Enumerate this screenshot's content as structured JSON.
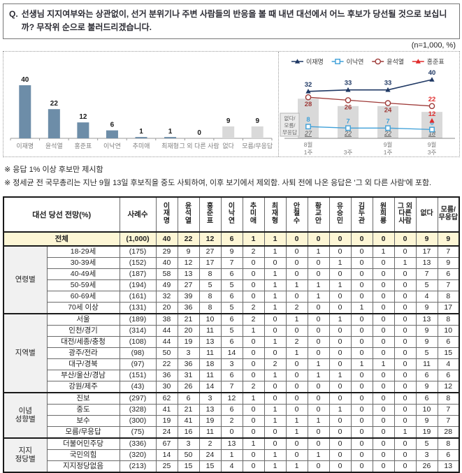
{
  "question": {
    "prefix": "Q.",
    "text": "선생님 지지여부와는 상관없이, 선거 분위기나 주변 사람들의 반응을 볼 때 내년 대선에서 어느 후보가 당선될 것으로 보십니까? 무작위 순으로 불러드리겠습니다."
  },
  "sample_label": "(n=1,000, %)",
  "notes": [
    "※ 응답 1% 이상 후보만 제시함",
    "※ 정세균 전 국무총리는 지난 9월 13일 후보직을 중도 사퇴하여, 이후 보기에서 제외함. 사퇴 전에 나온 응답은 '그 외 다른 사람'에 포함."
  ],
  "colors": {
    "bar_blue": "#6D8DA8",
    "bar_gray": "#D9D9D9",
    "axis": "#999999",
    "category_label": "#7F7F7F",
    "lee_jae_myung": "#1F3864",
    "lee_nak_yeon": "#3FA0D8",
    "yoon_seok_youl": "#9E3A38",
    "hong_jun_pyo": "#E02B2B",
    "total_row_bg": "#FDF6D5",
    "group_col_bg": "#F1F1F1"
  },
  "chart_data": [
    {
      "type": "bar",
      "title": "대선 당선 전망 (전체)",
      "categories": [
        "이재명",
        "윤석열",
        "홍준표",
        "이낙연",
        "추미애",
        "최재형",
        "그 외 다른 사람",
        "없다",
        "모름/무응답"
      ],
      "values": [
        40,
        22,
        12,
        6,
        1,
        1,
        0,
        9,
        9
      ],
      "bar_colors": [
        "#6D8DA8",
        "#6D8DA8",
        "#6D8DA8",
        "#6D8DA8",
        "#6D8DA8",
        "#6D8DA8",
        "#6D8DA8",
        "#D9D9D9",
        "#D9D9D9"
      ],
      "xlabel": "",
      "ylabel": "",
      "ylim": [
        0,
        45
      ],
      "grid": false
    },
    {
      "type": "line",
      "title": "대선 당선 전망 추이",
      "x_labels": [
        [
          "8월",
          "1주"
        ],
        [
          "",
          "3주"
        ],
        [
          "9월",
          "1주"
        ],
        [
          "9월",
          "3주"
        ]
      ],
      "series": [
        {
          "name": "이재명",
          "color": "#1F3864",
          "marker": "triangle-filled",
          "values": [
            32,
            33,
            33,
            40
          ],
          "label_pos": [
            "a",
            "a",
            "a",
            "a"
          ],
          "label_colors": [
            "#1F3864",
            "#1F3864",
            "#1F3864",
            "#1F3864"
          ]
        },
        {
          "name": "이낙연",
          "color": "#3FA0D8",
          "marker": "square-open",
          "values": [
            8,
            7,
            7,
            6
          ],
          "label_pos": [
            "a",
            "a",
            "a",
            "a"
          ],
          "label_colors": [
            "#3FA0D8",
            "#3FA0D8",
            "#3FA0D8",
            "#3FA0D8"
          ]
        },
        {
          "name": "윤석열",
          "color": "#9E3A38",
          "marker": "circle-open",
          "values": [
            28,
            26,
            24,
            22
          ],
          "label_pos": [
            "b",
            "b",
            "b",
            "a"
          ],
          "label_colors": [
            "#9E3A38",
            "#9E3A38",
            "#9E3A38",
            "#E02B2B"
          ]
        },
        {
          "name": "홍준표",
          "color": "#E02B2B",
          "marker": "triangle-filled",
          "values": [
            null,
            null,
            null,
            12
          ],
          "label_pos": [
            "a",
            "a",
            "a",
            "a"
          ],
          "label_colors": [
            "#E02B2B",
            "#E02B2B",
            "#E02B2B",
            "#E02B2B"
          ]
        }
      ],
      "bars": {
        "label_lines": [
          "없다/",
          "모름/",
          "무응답"
        ],
        "values": [
          27,
          22,
          22,
          18
        ],
        "color": "#D9D9D9"
      },
      "legend_position": "top",
      "ylim": [
        0,
        45
      ],
      "grid": false
    }
  ],
  "table": {
    "corner_header": "대선 당선 전망(%)",
    "n_header": "사례수",
    "columns": [
      {
        "label": "이재명",
        "display": [
          "이",
          "재",
          "명"
        ]
      },
      {
        "label": "윤석열",
        "display": [
          "윤",
          "석",
          "열"
        ]
      },
      {
        "label": "홍준표",
        "display": [
          "홍",
          "준",
          "표"
        ]
      },
      {
        "label": "이낙연",
        "display": [
          "이",
          "낙",
          "연"
        ]
      },
      {
        "label": "추미애",
        "display": [
          "추",
          "미",
          "애"
        ]
      },
      {
        "label": "최재형",
        "display": [
          "최",
          "재",
          "형"
        ]
      },
      {
        "label": "안철수",
        "display": [
          "안",
          "철",
          "수"
        ]
      },
      {
        "label": "황교안",
        "display": [
          "황",
          "교",
          "안"
        ]
      },
      {
        "label": "유승민",
        "display": [
          "유",
          "승",
          "민"
        ]
      },
      {
        "label": "김두관",
        "display": [
          "김",
          "두",
          "관"
        ]
      },
      {
        "label": "원희룡",
        "display": [
          "원",
          "희",
          "룡"
        ]
      },
      {
        "label": "그 외 다른 사람",
        "display": [
          "그 외",
          "다른",
          "사람"
        ]
      },
      {
        "label": "없다",
        "display": [
          "없다"
        ]
      },
      {
        "label": "모름/무응답",
        "display": [
          "모름/",
          "무응답"
        ]
      }
    ],
    "total_row": {
      "label": "전체",
      "n": "(1,000)",
      "values": [
        40,
        22,
        12,
        6,
        1,
        1,
        0,
        0,
        0,
        0,
        0,
        0,
        9,
        9
      ]
    },
    "groups": [
      {
        "label_lines": [
          "연령별"
        ],
        "rows": [
          {
            "label": "18-29세",
            "n": "(175)",
            "values": [
              29,
              9,
              27,
              9,
              2,
              1,
              0,
              1,
              0,
              0,
              1,
              0,
              17,
              7
            ]
          },
          {
            "label": "30-39세",
            "n": "(152)",
            "values": [
              40,
              12,
              17,
              7,
              0,
              0,
              0,
              0,
              1,
              0,
              0,
              1,
              13,
              9
            ]
          },
          {
            "label": "40-49세",
            "n": "(187)",
            "values": [
              58,
              13,
              8,
              6,
              0,
              1,
              0,
              0,
              0,
              0,
              0,
              0,
              7,
              6
            ]
          },
          {
            "label": "50-59세",
            "n": "(194)",
            "values": [
              49,
              27,
              5,
              5,
              0,
              1,
              1,
              1,
              1,
              0,
              0,
              0,
              5,
              7
            ]
          },
          {
            "label": "60-69세",
            "n": "(161)",
            "values": [
              32,
              39,
              8,
              6,
              0,
              1,
              0,
              1,
              0,
              0,
              0,
              0,
              4,
              8
            ]
          },
          {
            "label": "70세 이상",
            "n": "(131)",
            "values": [
              20,
              36,
              8,
              5,
              2,
              1,
              2,
              0,
              0,
              1,
              0,
              0,
              9,
              17
            ]
          }
        ]
      },
      {
        "label_lines": [
          "지역별"
        ],
        "rows": [
          {
            "label": "서울",
            "n": "(189)",
            "values": [
              38,
              21,
              10,
              6,
              2,
              0,
              1,
              0,
              1,
              0,
              0,
              0,
              13,
              8
            ]
          },
          {
            "label": "인천/경기",
            "n": "(314)",
            "values": [
              44,
              20,
              11,
              5,
              1,
              0,
              0,
              0,
              0,
              0,
              0,
              0,
              9,
              10
            ]
          },
          {
            "label": "대전/세종/충청",
            "n": "(108)",
            "values": [
              44,
              19,
              13,
              6,
              0,
              1,
              2,
              0,
              0,
              0,
              0,
              0,
              9,
              6
            ]
          },
          {
            "label": "광주/전라",
            "n": "(98)",
            "values": [
              50,
              3,
              11,
              14,
              0,
              0,
              1,
              0,
              0,
              0,
              0,
              0,
              5,
              15
            ]
          },
          {
            "label": "대구/경북",
            "n": "(97)",
            "values": [
              22,
              36,
              18,
              3,
              0,
              2,
              0,
              1,
              0,
              1,
              1,
              0,
              11,
              4
            ]
          },
          {
            "label": "부산/울산/경남",
            "n": "(151)",
            "values": [
              36,
              31,
              11,
              6,
              0,
              1,
              0,
              1,
              1,
              0,
              0,
              0,
              6,
              6
            ]
          },
          {
            "label": "강원/제주",
            "n": "(43)",
            "values": [
              30,
              26,
              14,
              7,
              2,
              0,
              0,
              0,
              0,
              0,
              0,
              0,
              9,
              12
            ]
          }
        ]
      },
      {
        "label_lines": [
          "이념",
          "성향별"
        ],
        "rows": [
          {
            "label": "진보",
            "n": "(297)",
            "values": [
              62,
              6,
              3,
              12,
              1,
              0,
              0,
              0,
              0,
              0,
              0,
              0,
              6,
              8
            ]
          },
          {
            "label": "중도",
            "n": "(328)",
            "values": [
              41,
              21,
              13,
              6,
              0,
              1,
              0,
              0,
              1,
              0,
              0,
              0,
              10,
              7
            ]
          },
          {
            "label": "보수",
            "n": "(300)",
            "values": [
              19,
              41,
              19,
              2,
              0,
              1,
              1,
              1,
              0,
              0,
              0,
              0,
              9,
              7
            ]
          },
          {
            "label": "모름/무응답",
            "n": "(75)",
            "values": [
              24,
              16,
              11,
              0,
              0,
              0,
              1,
              0,
              0,
              0,
              0,
              1,
              19,
              28
            ]
          }
        ]
      },
      {
        "label_lines": [
          "지지",
          "정당별"
        ],
        "rows": [
          {
            "label": "더불어민주당",
            "n": "(336)",
            "values": [
              67,
              3,
              2,
              13,
              1,
              0,
              0,
              0,
              0,
              0,
              0,
              0,
              5,
              8
            ]
          },
          {
            "label": "국민의힘",
            "n": "(320)",
            "values": [
              14,
              50,
              24,
              1,
              0,
              1,
              0,
              1,
              0,
              0,
              0,
              0,
              3,
              6
            ]
          },
          {
            "label": "지지정당없음",
            "n": "(213)",
            "values": [
              25,
              15,
              15,
              4,
              0,
              1,
              1,
              0,
              0,
              0,
              0,
              0,
              26,
              13
            ]
          }
        ]
      }
    ]
  }
}
